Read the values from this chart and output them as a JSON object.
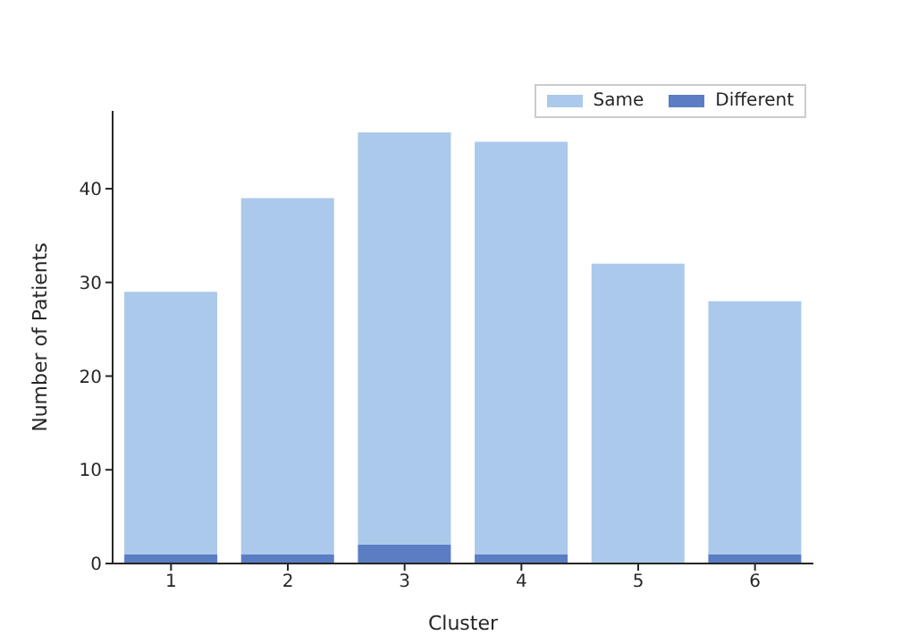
{
  "chart_data": {
    "type": "bar",
    "xlabel": "Cluster",
    "ylabel": "Number of Patients",
    "categories": [
      "1",
      "2",
      "3",
      "4",
      "5",
      "6"
    ],
    "stacked": true,
    "series": [
      {
        "name": "Different",
        "color": "#5a7dc4",
        "values": [
          1,
          1,
          2,
          1,
          0,
          1
        ]
      },
      {
        "name": "Same",
        "color": "#abc9eb",
        "values": [
          28,
          38,
          44,
          44,
          32,
          27
        ]
      }
    ],
    "ylim": [
      0,
      48.3
    ],
    "yticks": [
      0,
      10,
      20,
      30,
      40
    ],
    "legend": "top right",
    "grid": false
  }
}
